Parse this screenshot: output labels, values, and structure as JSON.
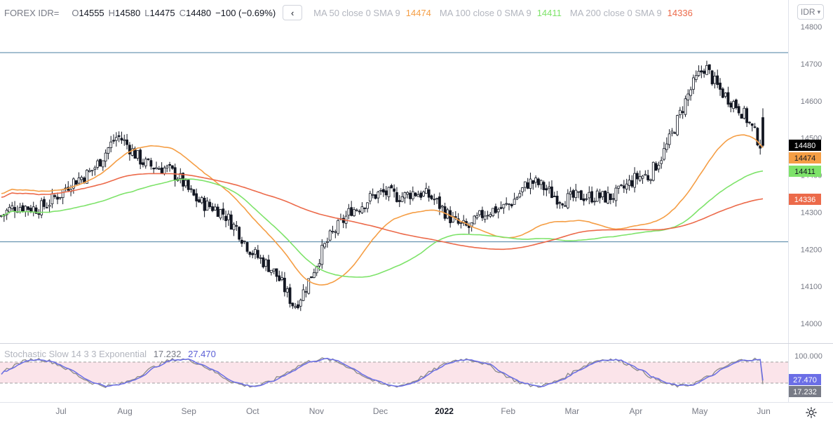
{
  "header": {
    "symbol": "FOREX IDR=",
    "open_label": "O",
    "open": "14555",
    "high_label": "H",
    "high": "14580",
    "low_label": "L",
    "low": "14475",
    "close_label": "C",
    "close": "14480",
    "change": "−100 (−0.69%)",
    "collapse_icon": "chevron-left-icon",
    "ma50_label": "MA 50 close 0 SMA 9",
    "ma50_value": "14474",
    "ma100_label": "MA 100 close 0 SMA 9",
    "ma100_value": "14411",
    "ma200_label": "MA 200 close 0 SMA 9",
    "ma200_value": "14336"
  },
  "currency_button": "IDR",
  "oscillator": {
    "label": "Stochastic Slow 14 3 3 Exponential",
    "k_value": "17.232",
    "d_value": "27.470"
  },
  "colors": {
    "ma50": "#f59e45",
    "ma100": "#7ee36a",
    "ma200": "#ec6a4a",
    "stoch_k": "#8a8a8a",
    "stoch_d": "#6b6ee6",
    "band": "#fbe4ea",
    "hline": "#4a7fa0",
    "last_price_tag": "#000000"
  },
  "chart_data": {
    "type": "candlestick",
    "price_axis": {
      "ticks": [
        "14800",
        "14700",
        "14600",
        "14500",
        "14400",
        "14300",
        "14200",
        "14100",
        "14000"
      ],
      "range": [
        13945,
        14830
      ]
    },
    "time_axis": {
      "labels": [
        "Jul",
        "Aug",
        "Sep",
        "Oct",
        "Nov",
        "Dec",
        "2022",
        "Feb",
        "Mar",
        "Apr",
        "May",
        "Jun"
      ]
    },
    "horizontal_lines": [
      14730,
      14220
    ],
    "last_values": {
      "close": "14480",
      "ma50": "14474",
      "ma100": "14411",
      "ma200": "14336"
    },
    "oscillator_axis": {
      "ticks": [
        "100.000"
      ],
      "band": [
        20,
        80
      ],
      "range": [
        0,
        100
      ]
    },
    "months": [
      {
        "label": "Jun",
        "start_price": 14290,
        "end_price": 14340
      },
      {
        "label": "Jul",
        "start_price": 14340,
        "end_price": 14490
      },
      {
        "label": "Aug",
        "start_price": 14490,
        "end_price": 14390
      },
      {
        "label": "Sep",
        "start_price": 14390,
        "end_price": 14260
      },
      {
        "label": "Oct",
        "start_price": 14260,
        "end_price": 14060
      },
      {
        "label": "Nov",
        "start_price": 14060,
        "end_price": 14320
      },
      {
        "label": "Dec",
        "start_price": 14320,
        "end_price": 14360
      },
      {
        "label": "2022",
        "start_price": 14360,
        "end_price": 14260
      },
      {
        "label": "Feb",
        "start_price": 14260,
        "end_price": 14370
      },
      {
        "label": "Mar",
        "start_price": 14370,
        "end_price": 14330
      },
      {
        "label": "Apr",
        "start_price": 14330,
        "end_price": 14390
      },
      {
        "label": "May",
        "start_price": 14390,
        "end_price": 14690
      },
      {
        "label": "Jun",
        "start_price": 14690,
        "end_price": 14480
      }
    ],
    "ma_series": [
      {
        "name": "MA 50",
        "start": 14350,
        "end": 14474
      },
      {
        "name": "MA 100",
        "start": 14290,
        "end": 14411
      },
      {
        "name": "MA 200",
        "start": 14340,
        "end": 14336
      }
    ],
    "stochastic": {
      "k_last": 17.232,
      "d_last": 27.47
    }
  }
}
